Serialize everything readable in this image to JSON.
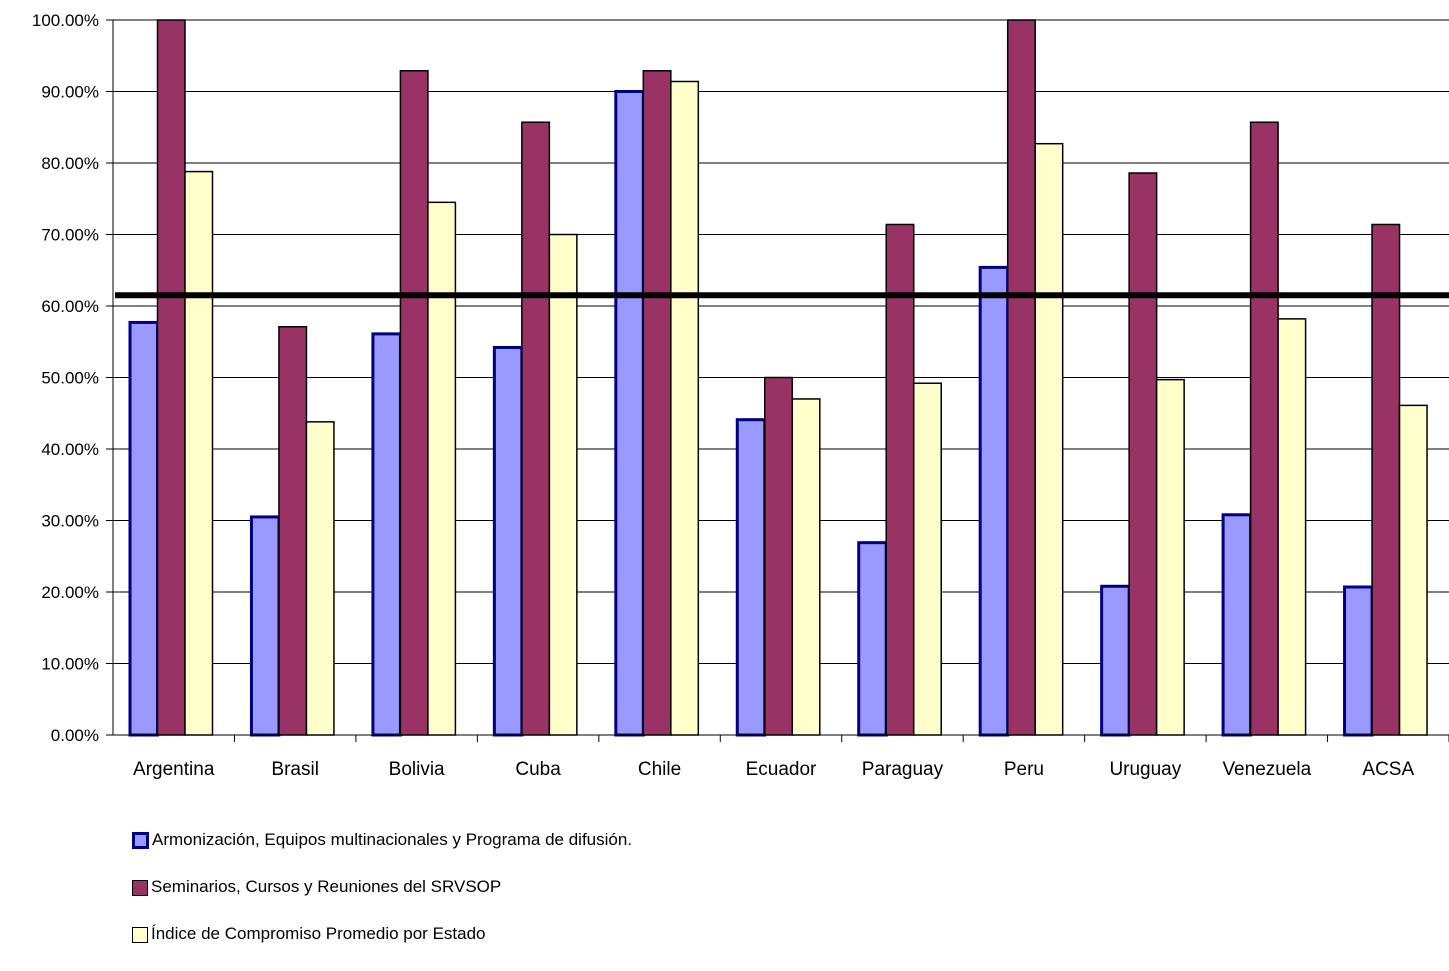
{
  "chart_data": {
    "type": "bar",
    "categories": [
      "Argentina",
      "Brasil",
      "Bolivia",
      "Cuba",
      "Chile",
      "Ecuador",
      "Paraguay",
      "Peru",
      "Uruguay",
      "Venezuela",
      "ACSA"
    ],
    "series": [
      {
        "name": "Armonización, Equipos multinacionales y Programa de difusión.",
        "values": [
          57.7,
          30.5,
          56.1,
          54.2,
          90.0,
          44.1,
          26.9,
          65.4,
          20.8,
          30.8,
          20.7
        ],
        "fill": "#9999ff",
        "stroke": "#000080"
      },
      {
        "name": "Seminarios, Cursos y Reuniones del SRVSOP",
        "values": [
          100.0,
          57.1,
          92.9,
          85.7,
          92.9,
          50.0,
          71.4,
          100.0,
          78.6,
          85.7,
          71.4
        ],
        "fill": "#993366",
        "stroke": "#000000"
      },
      {
        "name": "Índice de Compromiso Promedio por Estado",
        "values": [
          78.8,
          43.8,
          74.5,
          70.0,
          91.4,
          47.0,
          49.2,
          82.7,
          49.7,
          58.2,
          46.1
        ],
        "fill": "#ffffcc",
        "stroke": "#000000"
      }
    ],
    "reference_line": 61.5,
    "ylim": [
      0,
      100
    ],
    "yticks": [
      "0.00%",
      "10.00%",
      "20.00%",
      "30.00%",
      "40.00%",
      "50.00%",
      "60.00%",
      "70.00%",
      "80.00%",
      "90.00%",
      "100.00%"
    ],
    "grid": true,
    "legend_position": "bottom-left"
  }
}
